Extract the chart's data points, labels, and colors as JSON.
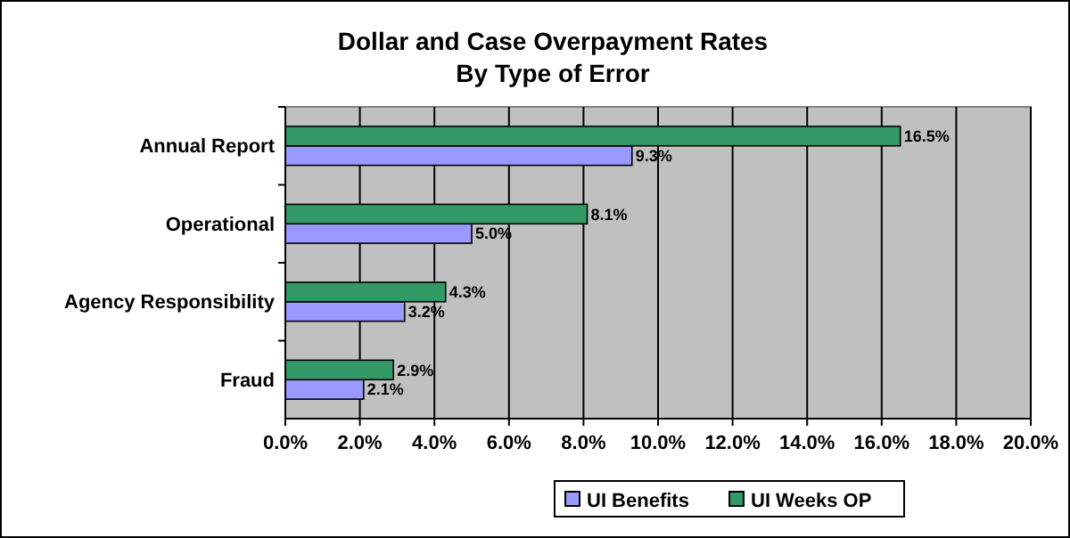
{
  "chart_data": {
    "type": "bar",
    "orientation": "horizontal",
    "title": "Dollar and Case Overpayment Rates",
    "subtitle": "By Type of Error",
    "categories": [
      "Annual Report",
      "Operational",
      "Agency Responsibility",
      "Fraud"
    ],
    "series": [
      {
        "name": "UI Benefits",
        "color": "#9999ff",
        "values": [
          9.3,
          5.0,
          3.2,
          2.1
        ],
        "value_labels": [
          "9.3%",
          "5.0%",
          "3.2%",
          "2.1%"
        ]
      },
      {
        "name": "UI Weeks OP",
        "color": "#339966",
        "values": [
          16.5,
          8.1,
          4.3,
          2.9
        ],
        "value_labels": [
          "16.5%",
          "8.1%",
          "4.3%",
          "2.9%"
        ]
      }
    ],
    "xlim": [
      0,
      20
    ],
    "xticks": [
      {
        "value": 0,
        "label": "0.0%"
      },
      {
        "value": 2,
        "label": "2.0%"
      },
      {
        "value": 4,
        "label": "4.0%"
      },
      {
        "value": 6,
        "label": "6.0%"
      },
      {
        "value": 8,
        "label": "8.0%"
      },
      {
        "value": 10,
        "label": "10.0%"
      },
      {
        "value": 12,
        "label": "12.0%"
      },
      {
        "value": 14,
        "label": "14.0%"
      },
      {
        "value": 16,
        "label": "16.0%"
      },
      {
        "value": 18,
        "label": "18.0%"
      },
      {
        "value": 20,
        "label": "20.0%"
      }
    ],
    "grid": "x",
    "legend": "bottom"
  }
}
